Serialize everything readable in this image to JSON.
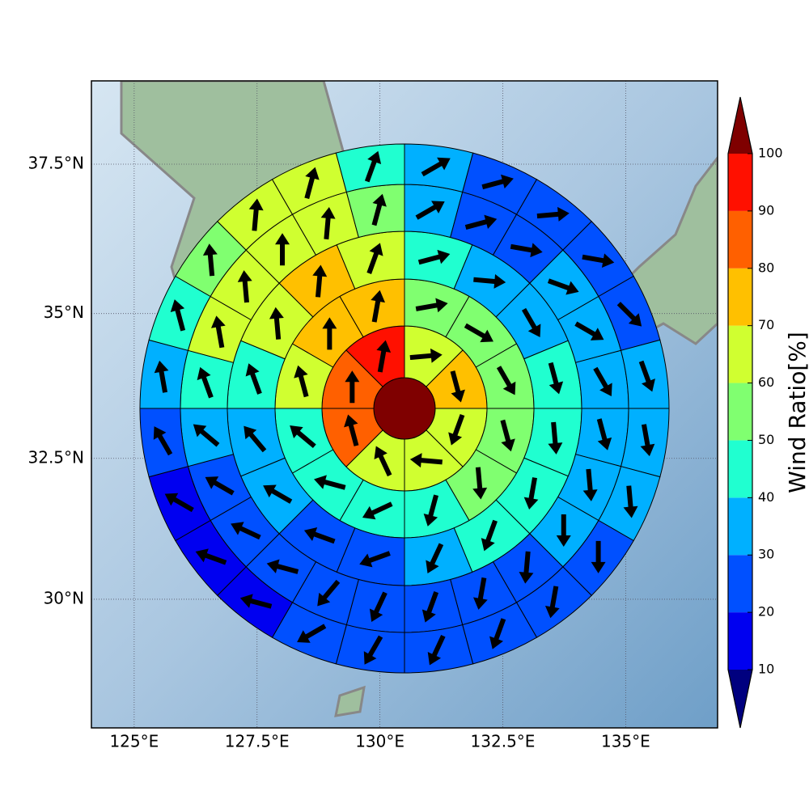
{
  "chart_data": {
    "type": "polar",
    "xlim": [
      124.13,
      136.87
    ],
    "ylim": [
      27.66,
      38.86
    ],
    "grid": true,
    "xticks": [
      {
        "value": 125,
        "label": "125°E"
      },
      {
        "value": 127.5,
        "label": "127.5°E"
      },
      {
        "value": 130,
        "label": "130°E"
      },
      {
        "value": 132.5,
        "label": "132.5°E"
      },
      {
        "value": 135,
        "label": "135°E"
      }
    ],
    "yticks": [
      {
        "value": 30,
        "label": "30°N"
      },
      {
        "value": 32.5,
        "label": "32.5°N"
      },
      {
        "value": 35,
        "label": "35°N"
      },
      {
        "value": 37.5,
        "label": "37.5°N"
      }
    ],
    "center_value": 105,
    "rings": [
      {
        "values": [
          65,
          75,
          65,
          65,
          65,
          85,
          85,
          95
        ],
        "directions": [
          85,
          165,
          200,
          275,
          335,
          345,
          0,
          10
        ]
      },
      {
        "values": [
          55,
          55,
          55,
          55,
          55,
          45,
          45,
          45,
          45,
          65,
          75,
          75
        ],
        "directions": [
          80,
          120,
          150,
          165,
          175,
          195,
          245,
          285,
          310,
          345,
          0,
          10
        ]
      },
      {
        "values": [
          45,
          35,
          35,
          45,
          45,
          45,
          45,
          35,
          25,
          25,
          35,
          35,
          45,
          65,
          75,
          65
        ],
        "directions": [
          75,
          95,
          150,
          165,
          175,
          190,
          200,
          205,
          250,
          290,
          300,
          320,
          340,
          355,
          5,
          20
        ]
      },
      {
        "values": [
          35,
          25,
          25,
          35,
          35,
          35,
          35,
          35,
          35,
          25,
          25,
          25,
          25,
          25,
          25,
          25,
          25,
          35,
          45,
          65,
          65,
          65,
          65,
          55
        ],
        "directions": [
          60,
          75,
          100,
          110,
          120,
          150,
          165,
          175,
          180,
          185,
          190,
          200,
          205,
          220,
          285,
          295,
          300,
          310,
          340,
          350,
          355,
          0,
          5,
          15
        ]
      },
      {
        "values": [
          35,
          25,
          25,
          25,
          25,
          35,
          35,
          35,
          25,
          25,
          25,
          25,
          25,
          25,
          15,
          15,
          15,
          25,
          35,
          45,
          55,
          65,
          65,
          45
        ],
        "directions": [
          60,
          75,
          85,
          100,
          135,
          160,
          170,
          175,
          180,
          190,
          200,
          205,
          210,
          240,
          285,
          290,
          300,
          330,
          350,
          345,
          355,
          5,
          15,
          20
        ]
      }
    ],
    "colorbar": {
      "label": "Wind Ratio[%]",
      "ticks": [
        10,
        20,
        30,
        40,
        50,
        60,
        70,
        80,
        90,
        100
      ],
      "colors": [
        "#0000f0",
        "#0050ff",
        "#00b0ff",
        "#20ffd0",
        "#80ff70",
        "#d0ff30",
        "#ffc000",
        "#ff6000",
        "#ff1000"
      ],
      "under_color": "#00007f",
      "over_color": "#7f0000"
    }
  }
}
